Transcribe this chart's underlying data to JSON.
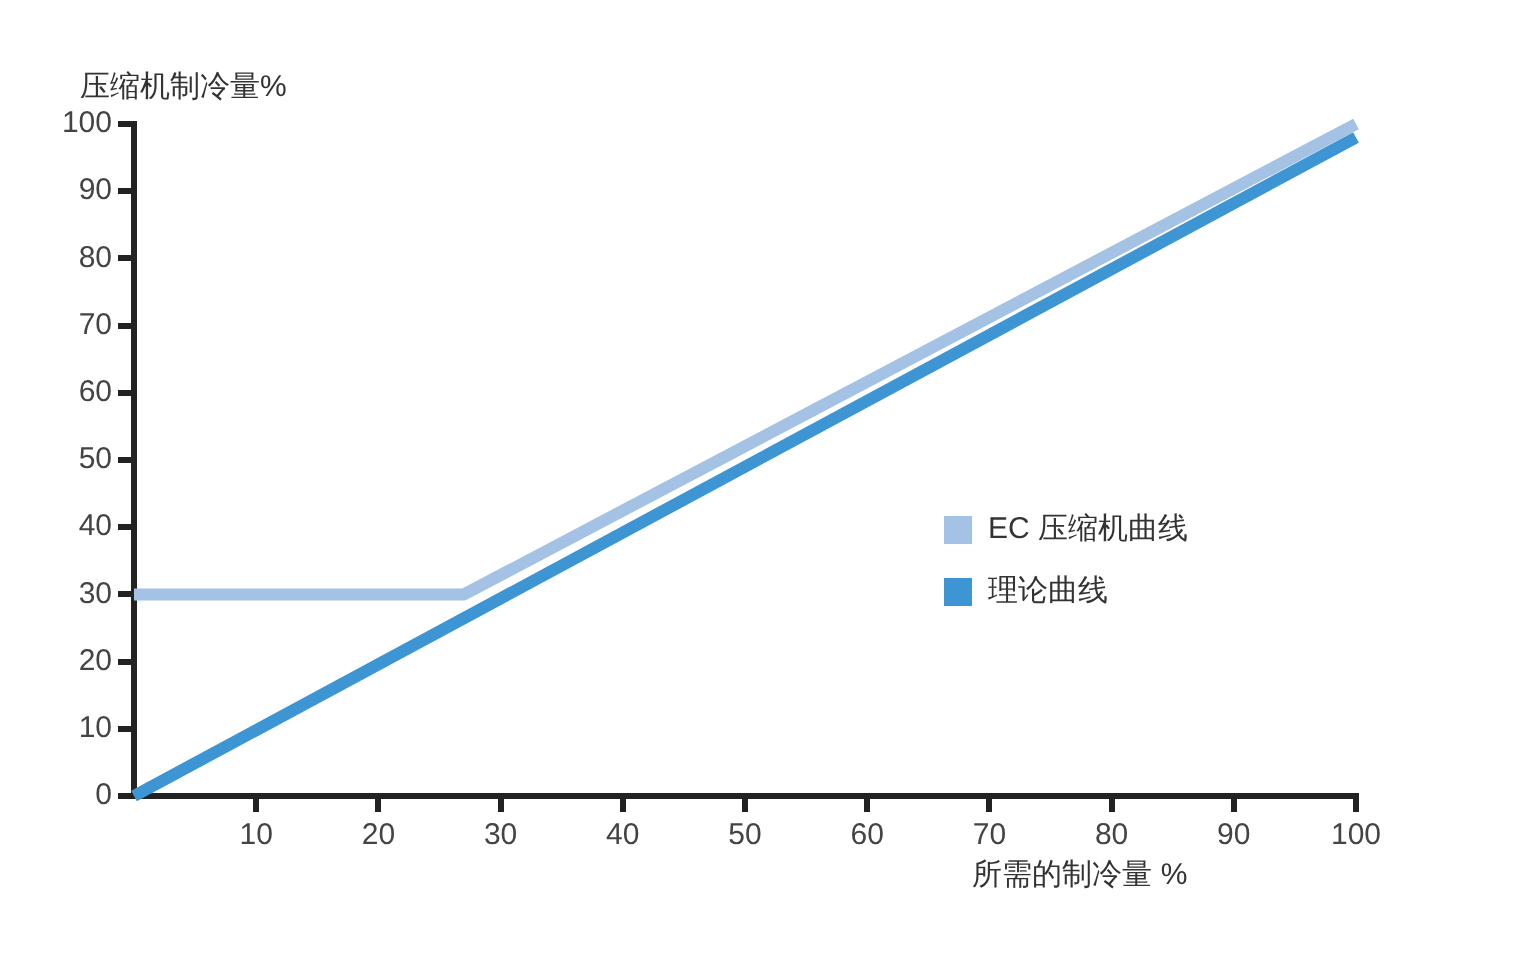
{
  "chart_data": {
    "type": "line",
    "xlabel": "所需的制冷量 %",
    "ylabel": "压缩机制冷量%",
    "xlim": [
      0,
      100
    ],
    "xticks": [
      10,
      20,
      30,
      40,
      50,
      60,
      70,
      80,
      90,
      100
    ],
    "ylim": [
      0,
      100
    ],
    "yticks": [
      0,
      10,
      20,
      30,
      40,
      50,
      60,
      70,
      80,
      90,
      100
    ],
    "grid": false,
    "legend": "right",
    "marker": "none",
    "line_style": "solid",
    "series": [
      {
        "name": "EC 压缩机曲线",
        "color": "#a4c2e4",
        "x": [
          0,
          27,
          100
        ],
        "values": [
          30,
          30,
          100
        ]
      },
      {
        "name": "理论曲线",
        "color": "#3d95d3",
        "x": [
          0,
          100
        ],
        "values": [
          0,
          98
        ]
      }
    ]
  }
}
